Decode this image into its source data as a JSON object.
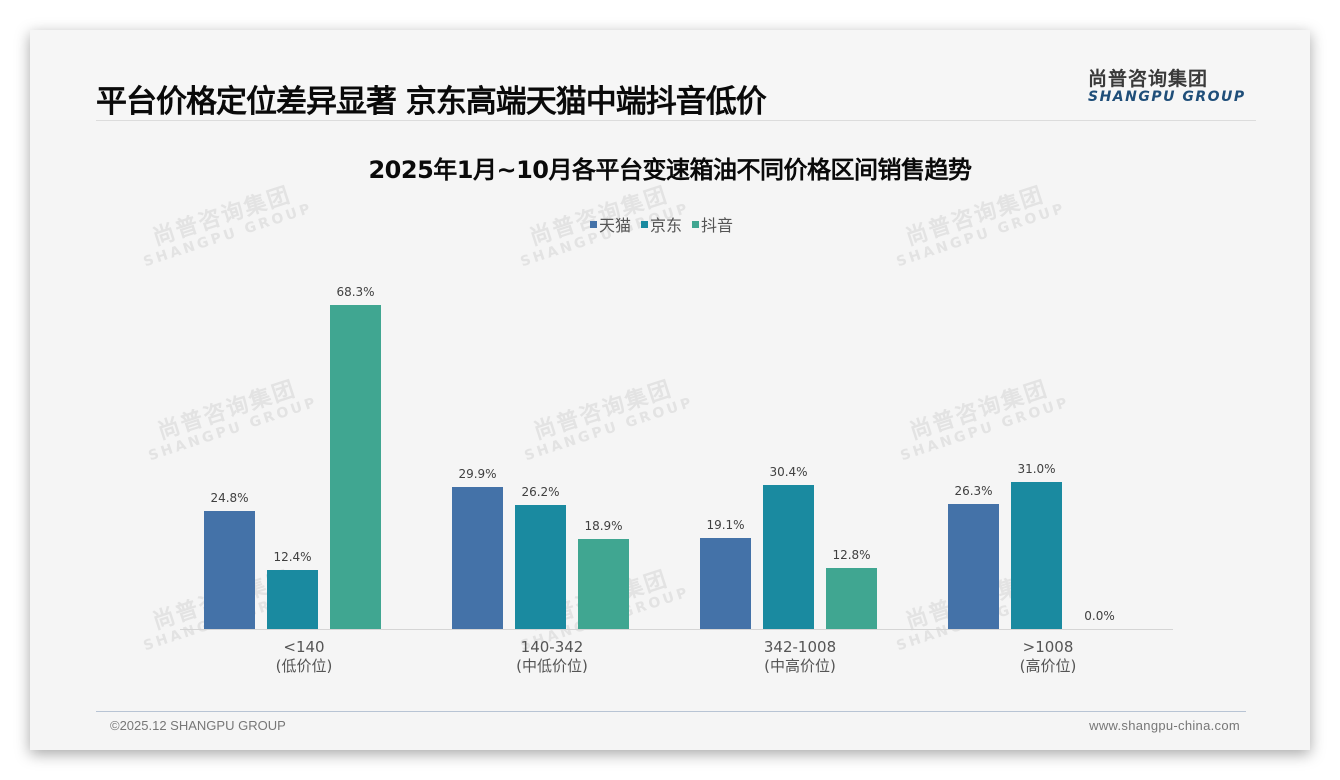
{
  "header": {
    "title": "平台价格定位差异显著 京东高端天猫中端抖音低价",
    "logo_cn": "尚普咨询集团",
    "logo_en": "SHANGPU GROUP"
  },
  "watermark": {
    "cn": "尚普咨询集团",
    "en": "SHANGPU GROUP"
  },
  "footer": {
    "copyright": "©2025.12 SHANGPU GROUP",
    "website": "www.shangpu-china.com"
  },
  "colors": {
    "tmall": "#4472a8",
    "jd": "#1a8aa0",
    "douyin": "#40a691"
  },
  "chart_data": {
    "type": "bar",
    "title": "2025年1月~10月各平台变速箱油不同价格区间销售趋势",
    "xlabel": "",
    "ylabel": "",
    "ylim": [
      0,
      75
    ],
    "grid": false,
    "legend_position": "top",
    "categories": [
      "<140\n(低价位)",
      "140-342\n(中低价位)",
      "342-1008\n(中高价位)",
      ">1008\n(高价位)"
    ],
    "category_lines": [
      [
        "<140",
        "(低价位)"
      ],
      [
        "140-342",
        "(中低价位)"
      ],
      [
        "342-1008",
        "(中高价位)"
      ],
      [
        ">1008",
        "(高价位)"
      ]
    ],
    "series": [
      {
        "name": "天猫",
        "values": [
          24.8,
          29.9,
          19.1,
          26.3
        ],
        "labels": [
          "24.8%",
          "29.9%",
          "19.1%",
          "26.3%"
        ]
      },
      {
        "name": "京东",
        "values": [
          12.4,
          26.2,
          30.4,
          31.0
        ],
        "labels": [
          "12.4%",
          "26.2%",
          "30.4%",
          "31.0%"
        ]
      },
      {
        "name": "抖音",
        "values": [
          68.3,
          18.9,
          12.8,
          0.0
        ],
        "labels": [
          "68.3%",
          "18.9%",
          "12.8%",
          "0.0%"
        ]
      }
    ],
    "value_unit": "%"
  }
}
